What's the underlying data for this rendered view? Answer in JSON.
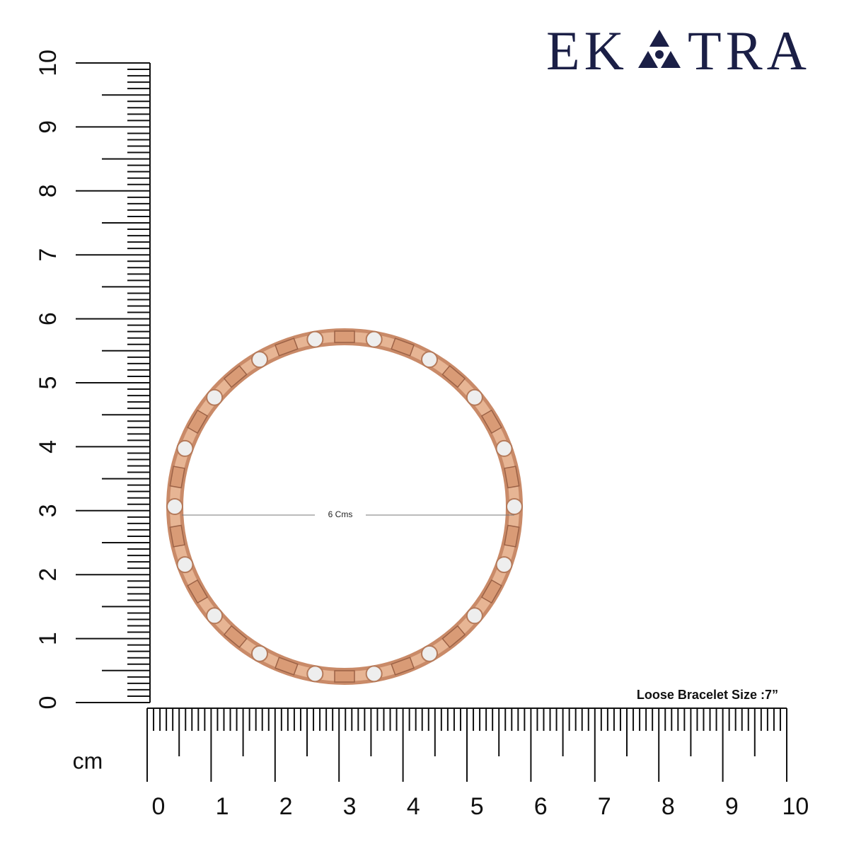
{
  "brand": {
    "left": "EK",
    "right": "TRA"
  },
  "vertical_ruler": {
    "labels": [
      0,
      1,
      2,
      3,
      4,
      5,
      6,
      7,
      8,
      9,
      10
    ]
  },
  "horizontal_ruler": {
    "labels": [
      0,
      1,
      2,
      3,
      4,
      5,
      6,
      7,
      8,
      9,
      10
    ]
  },
  "unit": "cm",
  "measurement": "6 Cms",
  "size_label": "Loose Bracelet Size :7”"
}
